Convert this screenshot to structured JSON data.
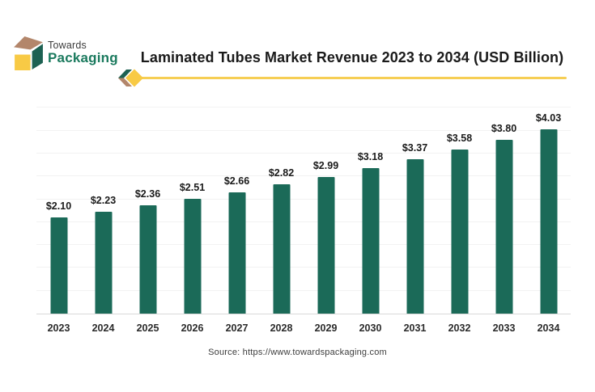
{
  "brand": {
    "line1": "Towards",
    "line2": "Packaging"
  },
  "header": {
    "title": "Laminated Tubes Market Revenue 2023 to 2034 (USD Billion)"
  },
  "footer": {
    "source": "Source: https://www.towardspackaging.com"
  },
  "colors": {
    "bar": "#1b6a58",
    "accent_gold": "#f6ce54",
    "brand_green": "#1b7a5e",
    "logo_tan": "#b3866b",
    "logo_yellow": "#f8ca45",
    "logo_green": "#1d6152",
    "gridline": "#f2f2f2",
    "baseline": "#d8d8d8",
    "title_text": "#1a1a1a"
  },
  "chart_data": {
    "type": "bar",
    "title": "Laminated Tubes Market Revenue 2023 to 2034 (USD Billion)",
    "xlabel": "",
    "ylabel": "",
    "categories": [
      "2023",
      "2024",
      "2025",
      "2026",
      "2027",
      "2028",
      "2029",
      "2030",
      "2031",
      "2032",
      "2033",
      "2034"
    ],
    "values": [
      2.1,
      2.23,
      2.36,
      2.51,
      2.66,
      2.82,
      2.99,
      3.18,
      3.37,
      3.58,
      3.8,
      4.03
    ],
    "value_labels": [
      "$2.10",
      "$2.23",
      "$2.36",
      "$2.51",
      "$2.66",
      "$2.82",
      "$2.99",
      "$3.18",
      "$3.37",
      "$3.58",
      "$3.80",
      "$4.03"
    ],
    "ylim": [
      0,
      4.56
    ],
    "gridline_step": 0.5,
    "grid": true,
    "legend": false,
    "bar_color": "#1b6a58",
    "value_label_prefix": "$"
  }
}
